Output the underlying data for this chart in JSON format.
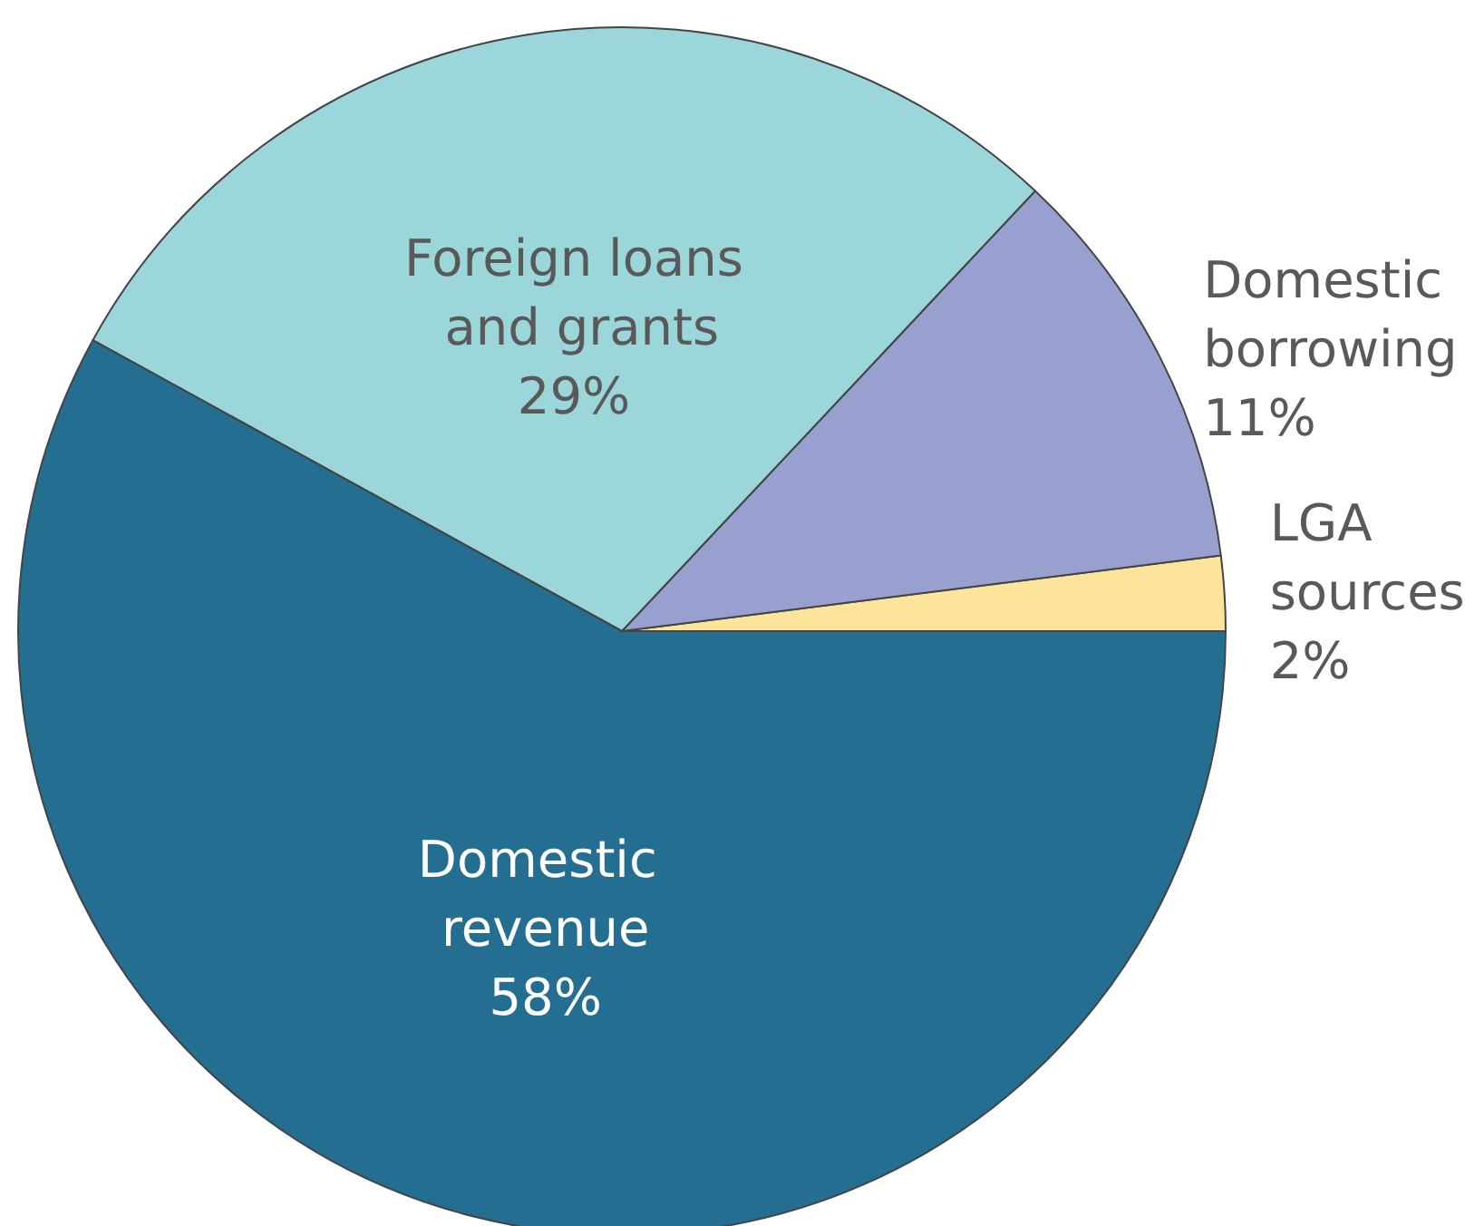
{
  "chart_data": {
    "type": "pie",
    "categories": [
      "LGA sources",
      "Domestic borrowing",
      "Foreign loans and grants",
      "Domestic revenue"
    ],
    "values": [
      2,
      11,
      29,
      58
    ],
    "value_labels": [
      "2%",
      "11%",
      "29%",
      "58%"
    ],
    "colors": [
      "#fce49a",
      "#98a0d0",
      "#9ad6da",
      "#236e91"
    ]
  }
}
